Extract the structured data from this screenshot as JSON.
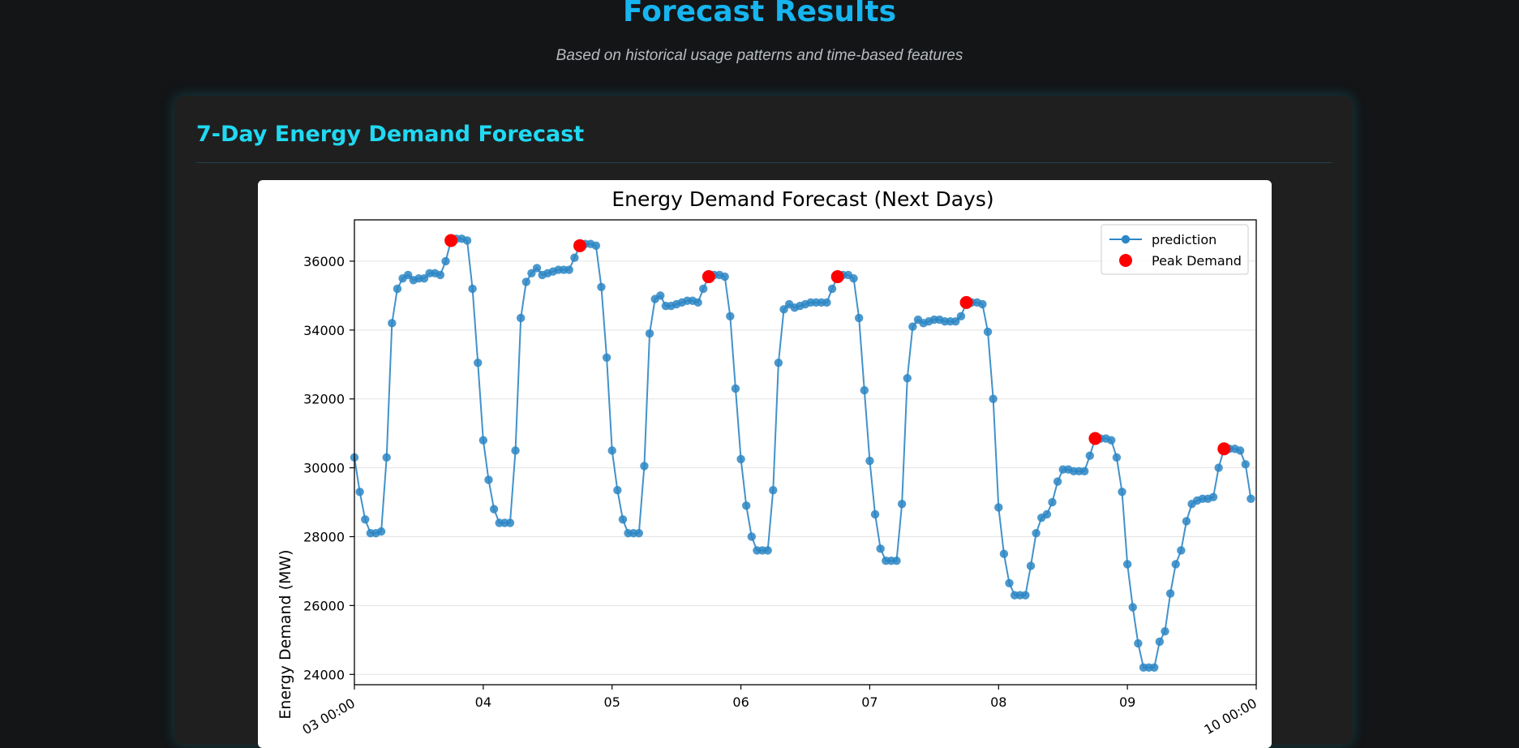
{
  "header": {
    "title": "Forecast Results",
    "subtitle": "Based on historical usage patterns and time-based features"
  },
  "section": {
    "title": "7-Day Energy Demand Forecast"
  },
  "colors": {
    "accent_title": "#16b5f0",
    "accent_section": "#21d9f2",
    "line": "#2c86c4",
    "peak": "#ff0000"
  },
  "chart_data": {
    "type": "line",
    "title": "Energy Demand Forecast (Next Days)",
    "xlabel": "",
    "ylabel": "Energy Demand (MW)",
    "xlim": [
      0,
      168
    ],
    "ylim": [
      23700,
      37200
    ],
    "grid": true,
    "legend_position": "top-right",
    "x_ticks": [
      {
        "x": 0,
        "label": "03 00:00"
      },
      {
        "x": 24,
        "label": "04"
      },
      {
        "x": 48,
        "label": "05"
      },
      {
        "x": 72,
        "label": "06"
      },
      {
        "x": 96,
        "label": "07"
      },
      {
        "x": 120,
        "label": "08"
      },
      {
        "x": 144,
        "label": "09"
      },
      {
        "x": 168,
        "label": "10 00:00"
      }
    ],
    "y_ticks": [
      24000,
      26000,
      28000,
      30000,
      32000,
      34000,
      36000
    ],
    "series": [
      {
        "name": "prediction",
        "marker": "circle",
        "values": [
          30300,
          29300,
          28500,
          28100,
          28100,
          28150,
          30300,
          34200,
          35200,
          35500,
          35600,
          35450,
          35500,
          35500,
          35650,
          35650,
          35600,
          36000,
          36600,
          36650,
          36650,
          36600,
          35200,
          33050,
          30800,
          29650,
          28800,
          28400,
          28400,
          28400,
          30500,
          34350,
          35400,
          35650,
          35800,
          35600,
          35650,
          35700,
          35750,
          35750,
          35750,
          36100,
          36450,
          36500,
          36500,
          36450,
          35250,
          33200,
          30500,
          29350,
          28500,
          28100,
          28100,
          28100,
          30050,
          33900,
          34900,
          35000,
          34700,
          34700,
          34750,
          34800,
          34850,
          34850,
          34800,
          35200,
          35550,
          35600,
          35600,
          35550,
          34400,
          32300,
          30250,
          28900,
          28000,
          27600,
          27600,
          27600,
          29350,
          33050,
          34600,
          34750,
          34650,
          34700,
          34750,
          34800,
          34800,
          34800,
          34800,
          35200,
          35550,
          35600,
          35600,
          35500,
          34350,
          32250,
          30200,
          28650,
          27650,
          27300,
          27300,
          27300,
          28950,
          32600,
          34100,
          34300,
          34200,
          34250,
          34300,
          34300,
          34250,
          34250,
          34250,
          34400,
          34800,
          34800,
          34800,
          34750,
          33950,
          32000,
          28850,
          27500,
          26650,
          26300,
          26300,
          26300,
          27150,
          28100,
          28550,
          28650,
          29000,
          29600,
          29950,
          29950,
          29900,
          29900,
          29900,
          30350,
          30850,
          30850,
          30850,
          30800,
          30300,
          29300,
          27200,
          25950,
          24900,
          24200,
          24200,
          24200,
          24950,
          25250,
          26350,
          27200,
          27600,
          28450,
          28950,
          29050,
          29100,
          29100,
          29150,
          30000,
          30550,
          30550,
          30550,
          30500,
          30100,
          29100
        ]
      },
      {
        "name": "Peak Demand",
        "marker": "circle",
        "points": [
          {
            "x": 18,
            "y": 36600
          },
          {
            "x": 42,
            "y": 36450
          },
          {
            "x": 66,
            "y": 35550
          },
          {
            "x": 90,
            "y": 35550
          },
          {
            "x": 114,
            "y": 34800
          },
          {
            "x": 138,
            "y": 30850
          },
          {
            "x": 162,
            "y": 30550
          }
        ]
      }
    ]
  }
}
